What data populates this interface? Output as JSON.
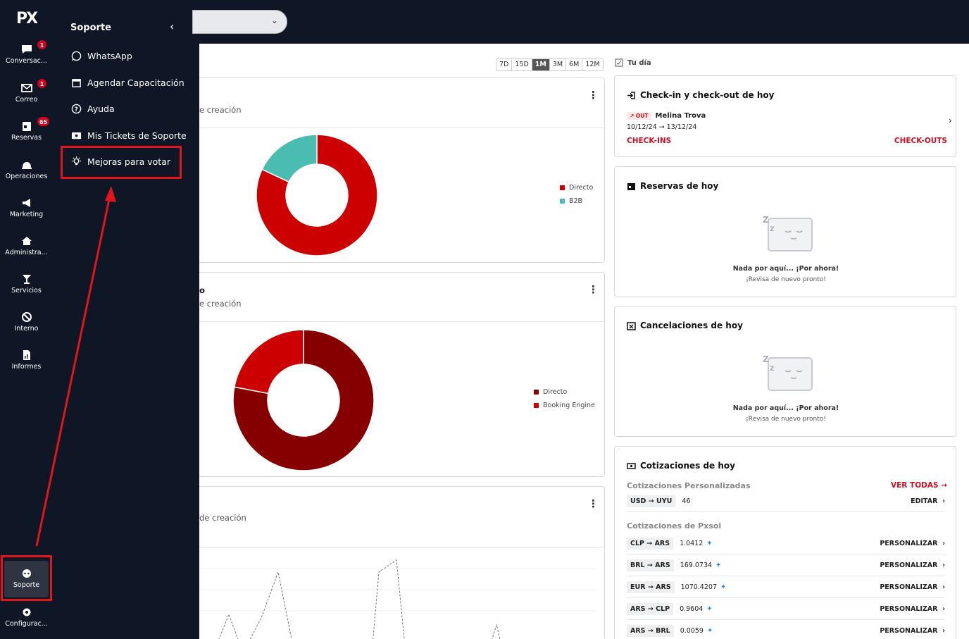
{
  "rail": {
    "logo": "PX",
    "items": [
      {
        "label": "Conversac...",
        "badge": "1",
        "icon": "chat-icon"
      },
      {
        "label": "Correo",
        "badge": "1",
        "icon": "mail-icon"
      },
      {
        "label": "Reservas",
        "badge": "65",
        "icon": "calendar-icon"
      },
      {
        "label": "Operaciones",
        "badge": "",
        "icon": "bell-icon"
      },
      {
        "label": "Marketing",
        "badge": "",
        "icon": "megaphone-icon"
      },
      {
        "label": "Administra...",
        "badge": "",
        "icon": "home-icon"
      },
      {
        "label": "Servicios",
        "badge": "",
        "icon": "cocktail-icon"
      },
      {
        "label": "Interno",
        "badge": "",
        "icon": "block-icon"
      },
      {
        "label": "Informes",
        "badge": "",
        "icon": "report-icon"
      },
      {
        "label": "Soporte",
        "badge": "",
        "icon": "support-icon"
      },
      {
        "label": "Configurac...",
        "badge": "",
        "icon": "gear-icon"
      }
    ]
  },
  "flyout": {
    "title": "Soporte",
    "items": [
      {
        "label": "WhatsApp",
        "icon": "whatsapp-icon"
      },
      {
        "label": "Agendar Capacitación",
        "icon": "calendar-icon"
      },
      {
        "label": "Ayuda",
        "icon": "help-icon"
      },
      {
        "label": "Mis Tickets de Soporte",
        "icon": "ticket-icon"
      },
      {
        "label": "Mejoras para votar",
        "icon": "lightbulb-icon"
      }
    ]
  },
  "range": [
    "7D",
    "15D",
    "1M",
    "3M",
    "6M",
    "12M"
  ],
  "range_active": "1M",
  "cards": [
    {
      "subtitle": "e creación",
      "title_fragment": ""
    },
    {
      "subtitle": "e creación",
      "title_fragment": "o"
    },
    {
      "subtitle": "de creación",
      "title_fragment": ""
    }
  ],
  "chart_data": [
    {
      "type": "pie",
      "categories": [
        "Directo",
        "B2B"
      ],
      "values": [
        82,
        18
      ],
      "colors": [
        "#cc0000",
        "#4bbdb0"
      ]
    },
    {
      "type": "pie",
      "categories": [
        "Directo",
        "Booking Engine"
      ],
      "values": [
        78,
        22
      ],
      "colors": [
        "#870000",
        "#cc0000"
      ]
    }
  ],
  "right": {
    "tu_dia": "Tu día",
    "checkin": {
      "title": "Check-in y check-out de hoy",
      "tag": "OUT",
      "guest": "Melina Trova",
      "dates": "10/12/24 → 13/12/24",
      "checkins": "CHECK-INS",
      "checkouts": "CHECK-OUTS"
    },
    "reservas": {
      "title": "Reservas de hoy",
      "empty_title": "Nada por aquí... ¡Por ahora!",
      "empty_sub": "¡Revisa de nuevo pronto!"
    },
    "cancelaciones": {
      "title": "Cancelaciones de hoy",
      "empty_title": "Nada por aquí... ¡Por ahora!",
      "empty_sub": "¡Revisa de nuevo pronto!"
    },
    "cotizaciones": {
      "title": "Cotizaciones de hoy",
      "personalizadas_label": "Cotizaciones Personalizadas",
      "ver_todas": "VER TODAS →",
      "custom": [
        {
          "pair": "USD → UYU",
          "value": "46",
          "action": "EDITAR"
        }
      ],
      "pxsol_label": "Cotizaciones de Pxsol",
      "pxsol": [
        {
          "pair": "CLP → ARS",
          "value": "1.0412",
          "action": "PERSONALIZAR"
        },
        {
          "pair": "BRL → ARS",
          "value": "169.0734",
          "action": "PERSONALIZAR"
        },
        {
          "pair": "EUR → ARS",
          "value": "1070.4207",
          "action": "PERSONALIZAR"
        },
        {
          "pair": "ARS → CLP",
          "value": "0.9604",
          "action": "PERSONALIZAR"
        },
        {
          "pair": "ARS → BRL",
          "value": "0.0059",
          "action": "PERSONALIZAR"
        }
      ]
    }
  }
}
